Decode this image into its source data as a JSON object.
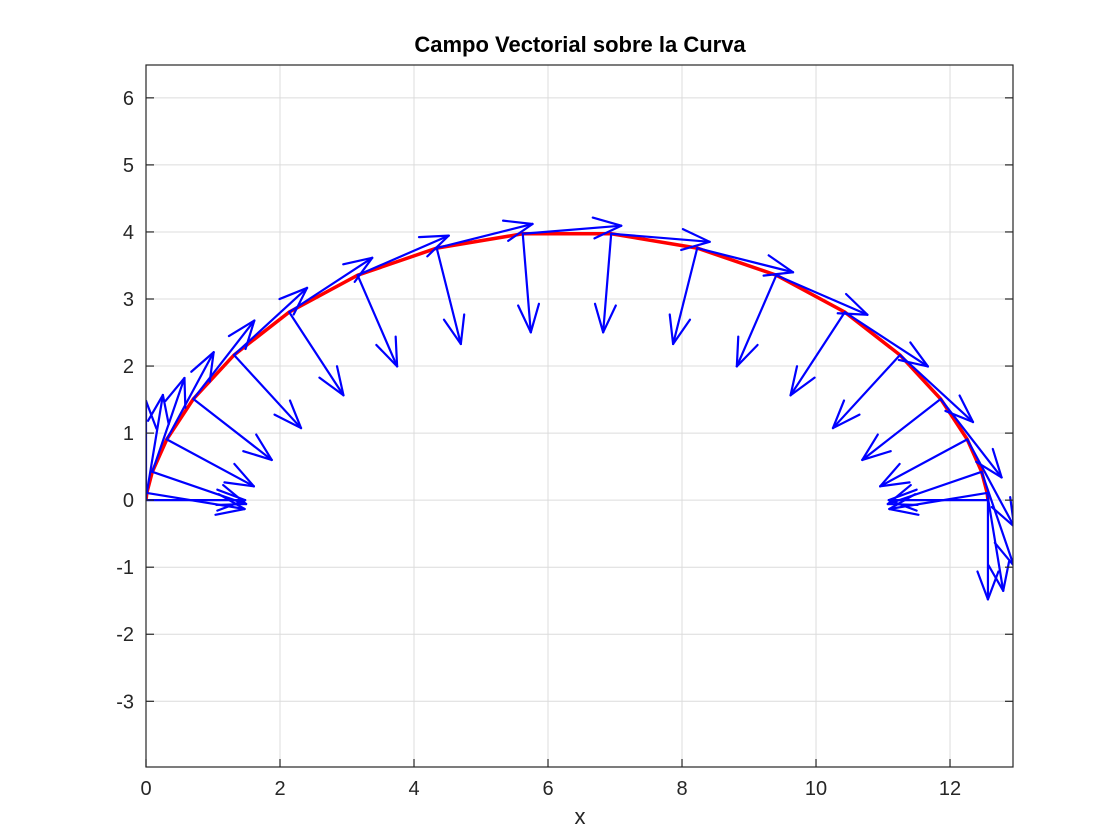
{
  "chart_data": {
    "type": "line",
    "title": "Campo Vectorial sobre la Curva",
    "xlabel": "x",
    "ylabel": "",
    "xlim": [
      0,
      12.94
    ],
    "ylim": [
      -3.98,
      6.49
    ],
    "grid": true,
    "xticks": [
      "0",
      "2",
      "4",
      "6",
      "8",
      "10",
      "12"
    ],
    "yticks": [
      "-3",
      "-2",
      "-1",
      "0",
      "1",
      "2",
      "3",
      "4",
      "5",
      "6"
    ],
    "colors": {
      "curve": "#ff0000",
      "arrows": "#0000ff",
      "grid": "#dcdcdc",
      "axis": "#262626"
    },
    "curve": {
      "x": [
        0,
        0.012,
        0.094,
        0.31,
        0.707,
        1.314,
        2.137,
        3.158,
        4.339,
        5.623,
        6.943,
        8.227,
        9.408,
        10.43,
        11.253,
        11.86,
        12.257,
        12.472,
        12.554,
        12.566
      ],
      "y": [
        0,
        0.108,
        0.422,
        0.906,
        1.509,
        2.165,
        2.804,
        3.355,
        3.759,
        3.973,
        3.973,
        3.759,
        3.355,
        2.804,
        2.165,
        1.509,
        0.906,
        0.422,
        0.108,
        0
      ]
    },
    "tangent_vectors": {
      "u": [
        0,
        0.24,
        0.48,
        0.7,
        0.91,
        1.09,
        1.24,
        1.36,
        1.43,
        1.47,
        1.47,
        1.43,
        1.36,
        1.24,
        1.09,
        0.91,
        0.7,
        0.48,
        0.24,
        0
      ],
      "v": [
        1.48,
        1.46,
        1.4,
        1.3,
        1.17,
        1.0,
        0.81,
        0.59,
        0.36,
        0.12,
        -0.12,
        -0.36,
        -0.59,
        -0.81,
        -1.0,
        -1.17,
        -1.3,
        -1.4,
        -1.46,
        -1.48
      ]
    },
    "normal_vectors": {
      "u": [
        1.48,
        1.46,
        1.4,
        1.3,
        1.17,
        1.0,
        0.81,
        0.59,
        0.36,
        0.12,
        -0.12,
        -0.36,
        -0.59,
        -0.81,
        -1.0,
        -1.17,
        -1.3,
        -1.4,
        -1.46,
        -1.48
      ],
      "v": [
        0,
        -0.24,
        -0.48,
        -0.7,
        -0.91,
        -1.09,
        -1.24,
        -1.36,
        -1.43,
        -1.47,
        -1.47,
        -1.43,
        -1.36,
        -1.24,
        -1.09,
        -0.91,
        -0.7,
        -0.48,
        -0.24,
        0
      ]
    }
  }
}
